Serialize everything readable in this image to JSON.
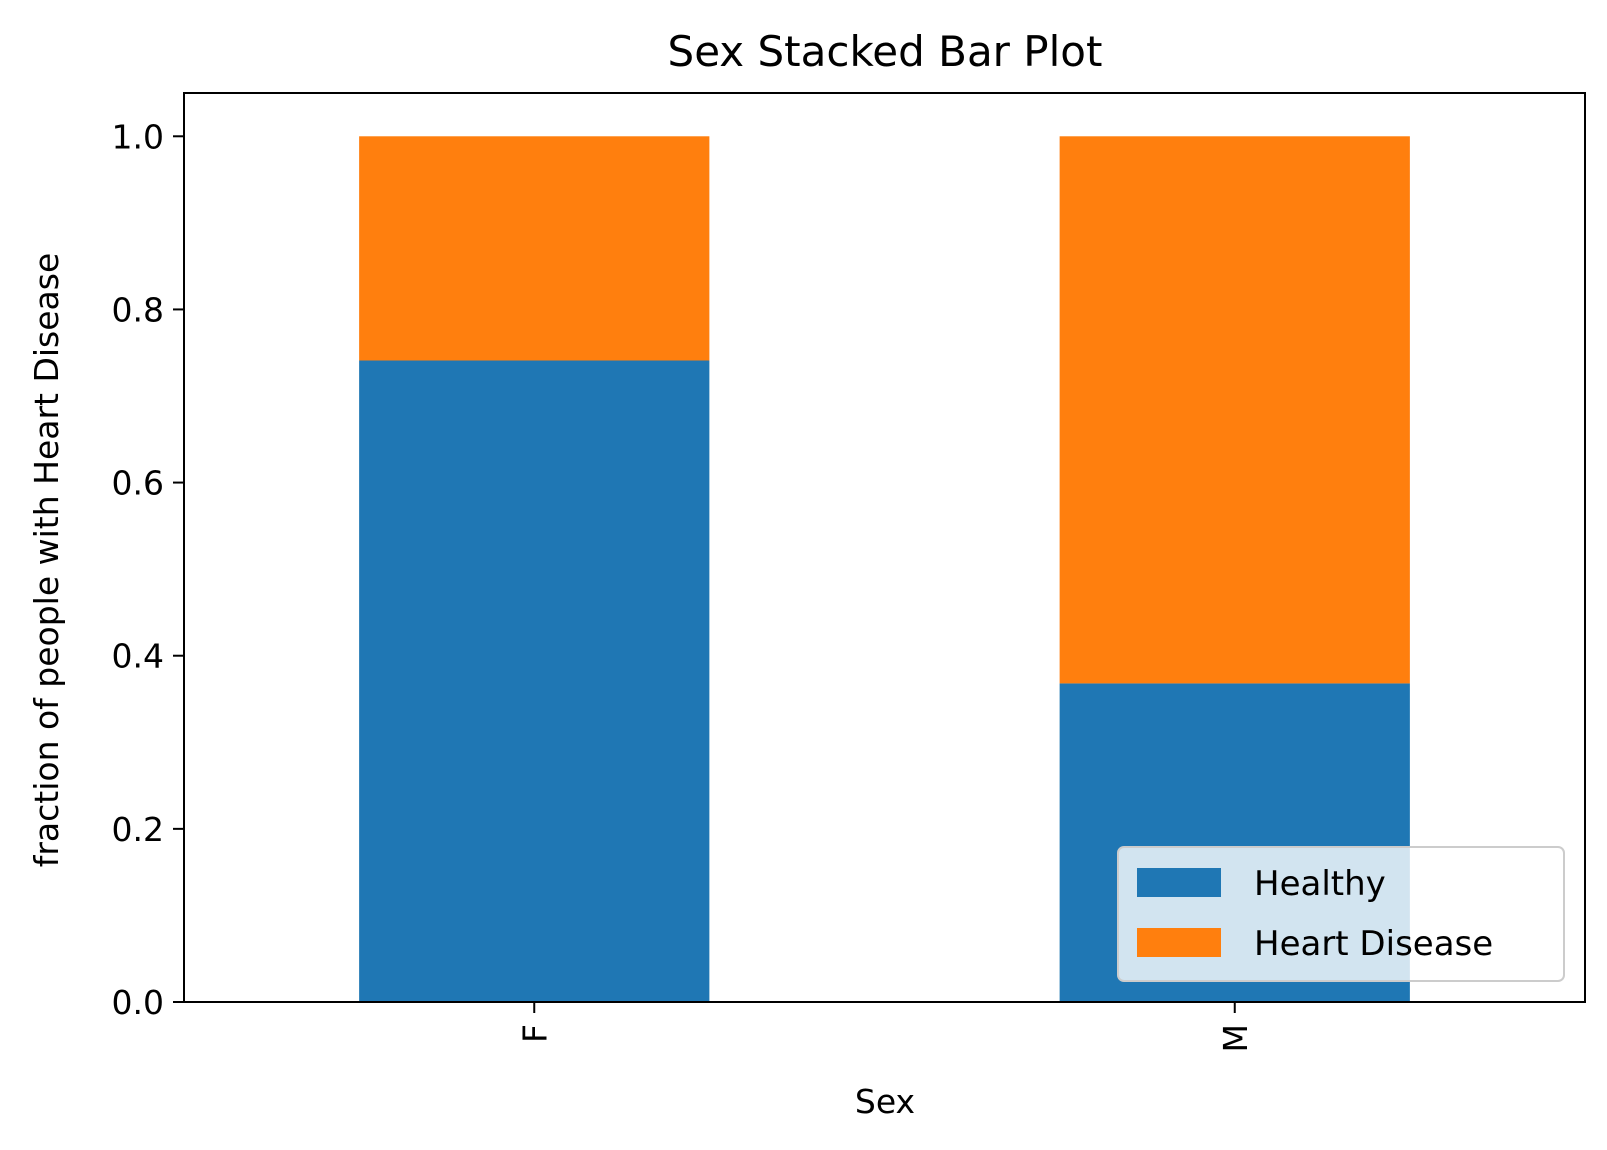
{
  "chart_data": {
    "type": "bar",
    "stacked": true,
    "title": "Sex Stacked Bar Plot",
    "xlabel": "Sex",
    "ylabel": "fraction of people with Heart Disease",
    "categories": [
      "F",
      "M"
    ],
    "series": [
      {
        "name": "Healthy",
        "values": [
          0.741,
          0.368
        ],
        "color": "#1f77b4"
      },
      {
        "name": "Heart Disease",
        "values": [
          0.259,
          0.632
        ],
        "color": "#ff7f0e"
      }
    ],
    "ylim": [
      0,
      1.05
    ],
    "yticks": [
      0.0,
      0.2,
      0.4,
      0.6,
      0.8,
      1.0
    ],
    "ytick_labels": [
      "0.0",
      "0.2",
      "0.4",
      "0.6",
      "0.8",
      "1.0"
    ],
    "legend_position": "lower-right",
    "grid": false
  }
}
